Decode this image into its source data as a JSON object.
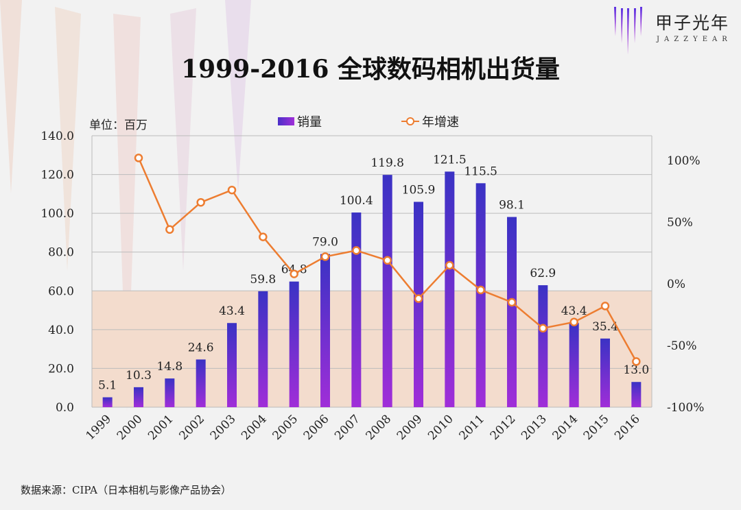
{
  "title": "1999-2016 全球数码相机出货量",
  "unit_label": "单位：百万",
  "source": "数据来源：CIPA（日本相机与影像产品协会）",
  "logo": {
    "cn": "甲子光年",
    "en": "JAZZYEAR"
  },
  "chart_data": {
    "type": "bar+line",
    "title": "1999-2016 全球数码相机出货量",
    "categories": [
      "1999",
      "2000",
      "2001",
      "2002",
      "2003",
      "2004",
      "2005",
      "2006",
      "2007",
      "2008",
      "2009",
      "2010",
      "2011",
      "2012",
      "2013",
      "2014",
      "2015",
      "2016"
    ],
    "series": [
      {
        "name": "销量",
        "type": "bar",
        "axis": "left",
        "color": "#8a2be2",
        "values": [
          5.1,
          10.3,
          14.8,
          24.6,
          43.4,
          59.8,
          64.8,
          79.0,
          100.4,
          119.8,
          105.9,
          121.5,
          115.5,
          98.1,
          62.9,
          43.4,
          35.4,
          13.0
        ]
      },
      {
        "name": "年增速",
        "type": "line",
        "axis": "right",
        "color": "#ed7d31",
        "values": [
          null,
          102,
          44,
          66,
          76,
          38,
          8,
          22,
          27,
          19,
          -12,
          15,
          -5,
          -15,
          -36,
          -31,
          -18,
          -63
        ]
      }
    ],
    "left_axis": {
      "range": [
        0,
        140
      ],
      "ticks": [
        "0.0",
        "20.0",
        "40.0",
        "60.0",
        "80.0",
        "100.0",
        "120.0",
        "140.0"
      ]
    },
    "right_axis": {
      "range": [
        -100,
        100
      ],
      "ticks": [
        "-100%",
        "-50%",
        "0%",
        "50%",
        "100%"
      ]
    },
    "grid": true,
    "legend": "top"
  }
}
